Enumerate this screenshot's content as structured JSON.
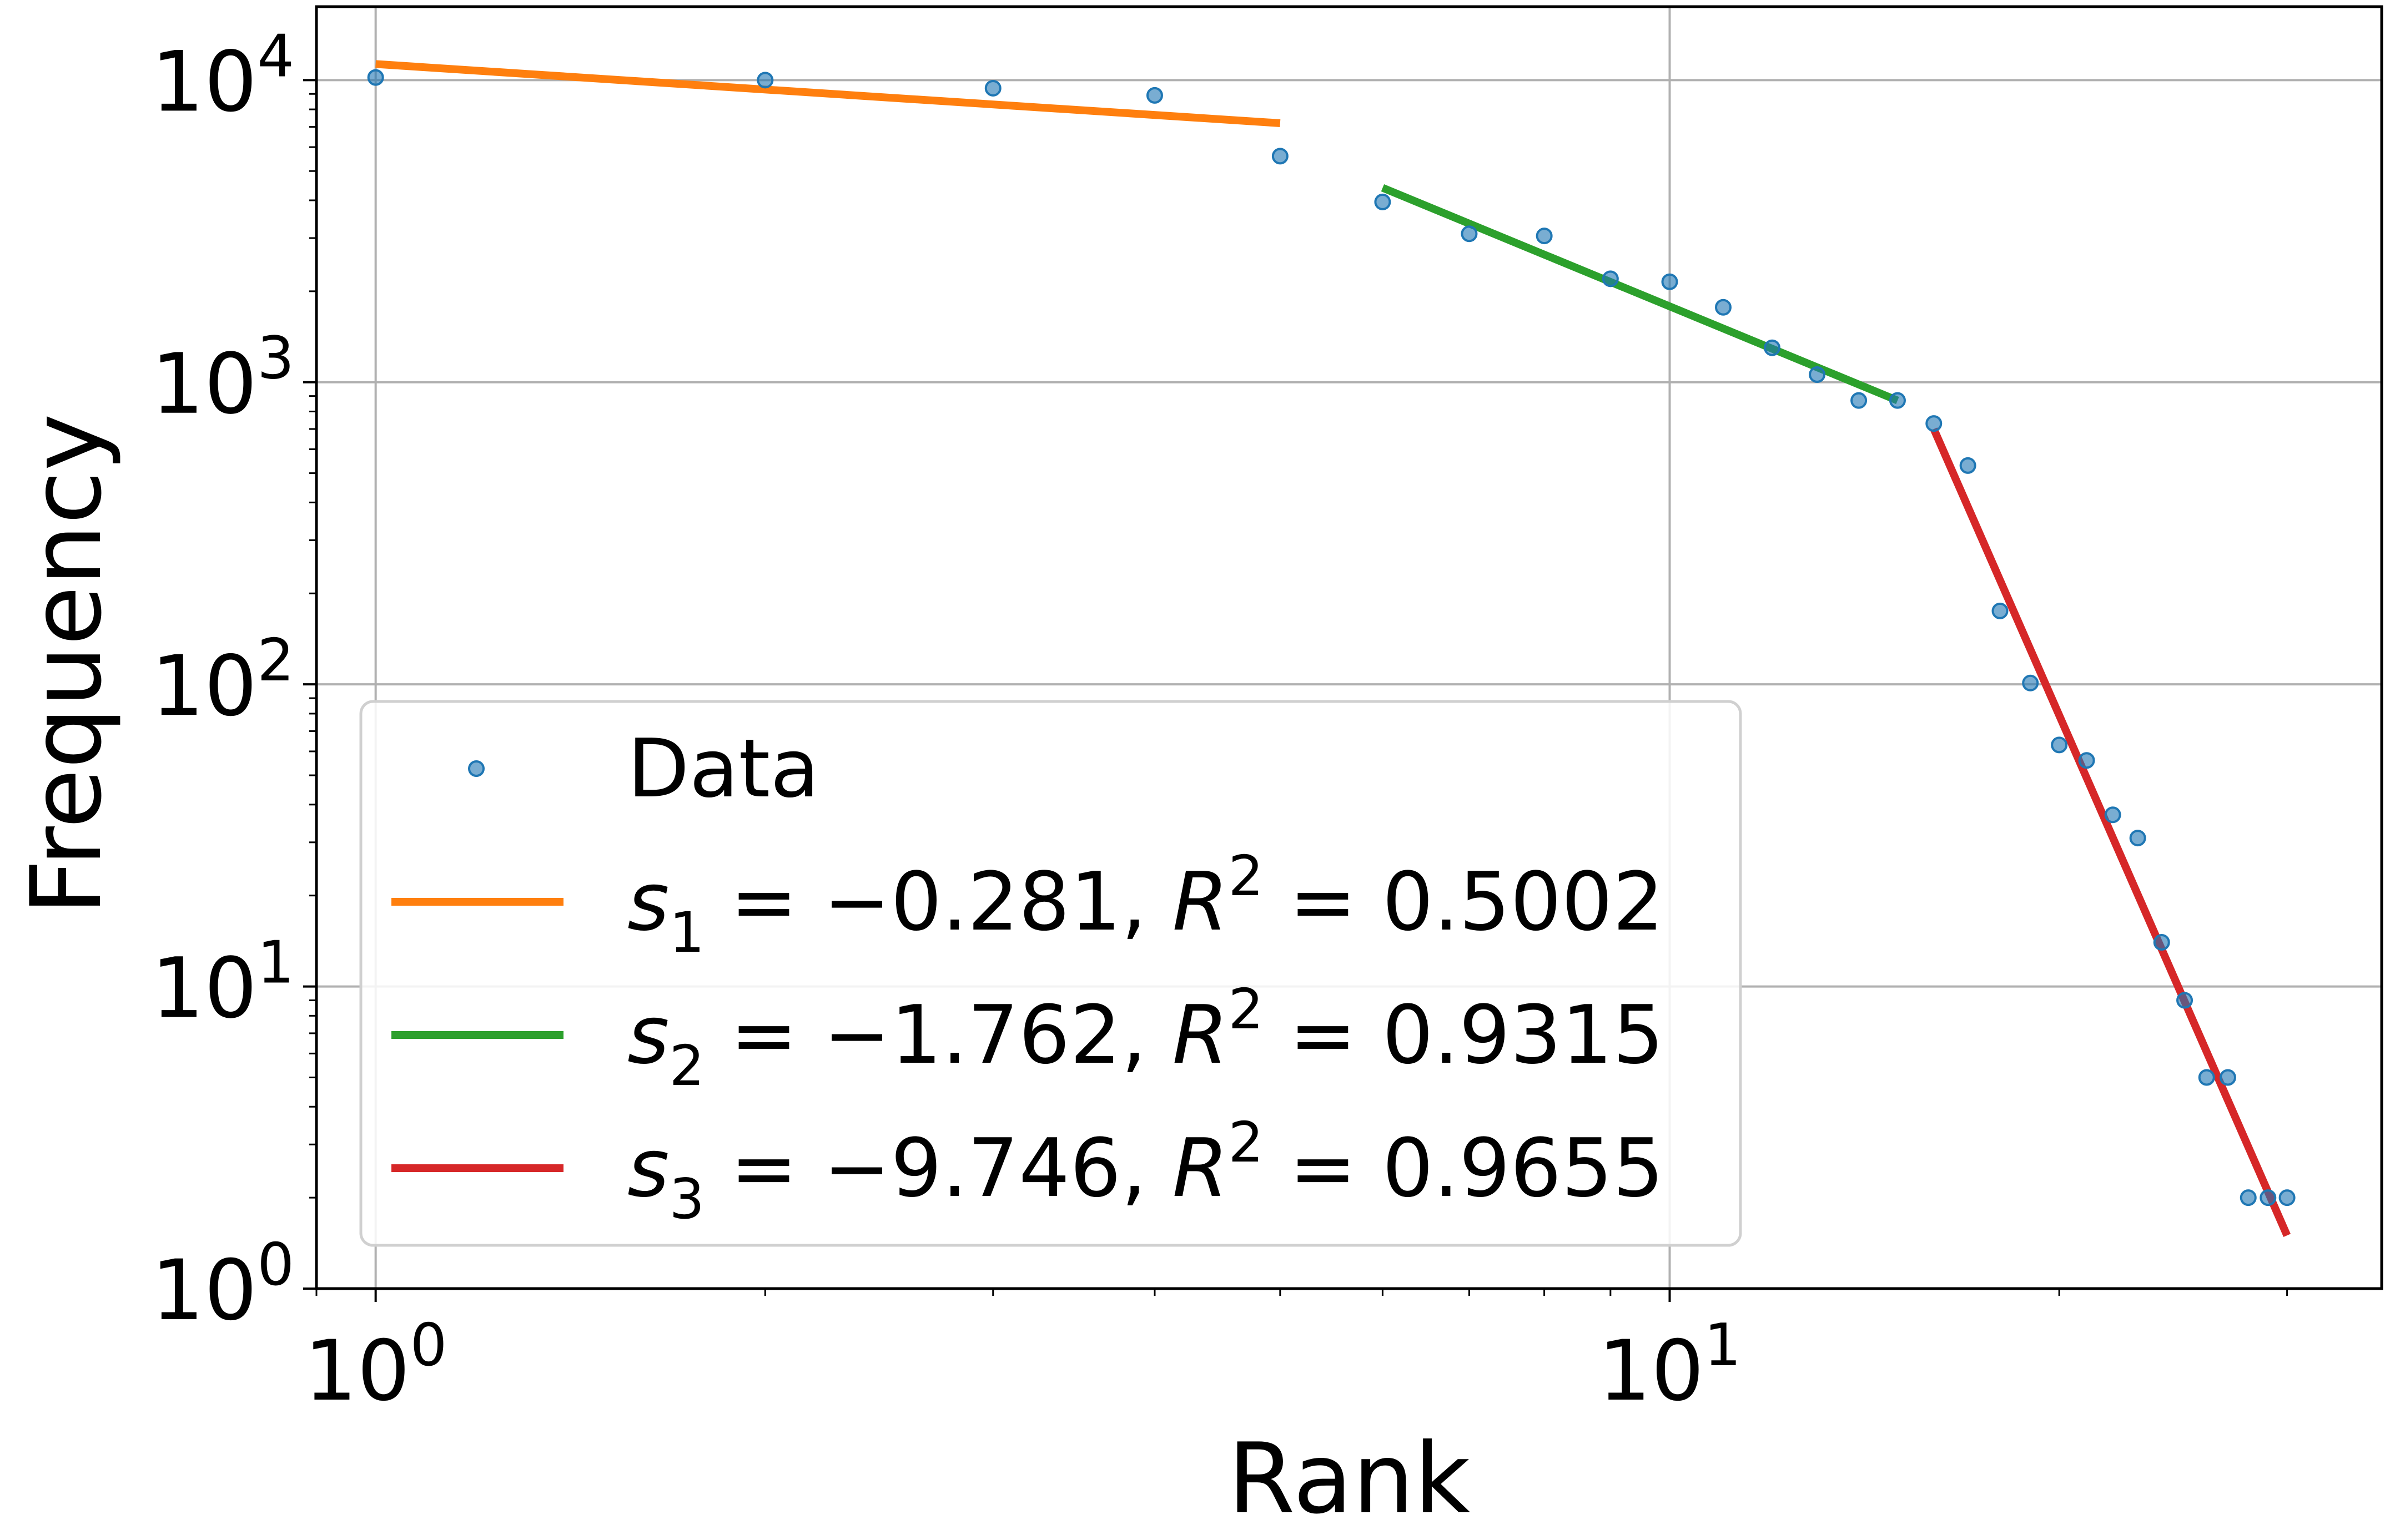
{
  "chart_data": {
    "type": "scatter",
    "title": "",
    "xlabel": "Rank",
    "ylabel": "Frequency",
    "xscale": "log",
    "yscale": "log",
    "xlim": [
      0.9,
      35.5
    ],
    "ylim": [
      1,
      17500
    ],
    "grid": true,
    "legend_position": "bottom-left",
    "x_ticks": [
      {
        "value": 1,
        "base": "10",
        "exp": "0"
      },
      {
        "value": 10,
        "base": "10",
        "exp": "1"
      }
    ],
    "y_ticks": [
      {
        "value": 1,
        "base": "10",
        "exp": "0"
      },
      {
        "value": 10,
        "base": "10",
        "exp": "1"
      },
      {
        "value": 100,
        "base": "10",
        "exp": "2"
      },
      {
        "value": 1000,
        "base": "10",
        "exp": "3"
      },
      {
        "value": 10000,
        "base": "10",
        "exp": "4"
      }
    ],
    "series": [
      {
        "name": "Data",
        "kind": "points",
        "color": "#1f77b4",
        "x": [
          1,
          2,
          3,
          4,
          5,
          6,
          7,
          8,
          9,
          10,
          11,
          12,
          13,
          14,
          15,
          16,
          17,
          18,
          19,
          20,
          21,
          22,
          23,
          24,
          25,
          26,
          27,
          28,
          29,
          30
        ],
        "y": [
          10200,
          10000,
          9400,
          8900,
          5600,
          3950,
          3100,
          3050,
          2200,
          2150,
          1770,
          1300,
          1060,
          870,
          870,
          730,
          530,
          175,
          101,
          63,
          56,
          37,
          31,
          14,
          9,
          5,
          5,
          2,
          2,
          2
        ]
      },
      {
        "name": "s1 fit",
        "kind": "line",
        "color": "#ff7f0e",
        "x": [
          1,
          5
        ],
        "y": [
          11300,
          7200
        ]
      },
      {
        "name": "s2 fit",
        "kind": "line",
        "color": "#2ca02c",
        "x": [
          6,
          15
        ],
        "y": [
          4400,
          870
        ]
      },
      {
        "name": "s3 fit",
        "kind": "line",
        "color": "#d62728",
        "x": [
          16,
          30
        ],
        "y": [
          700,
          1.5
        ]
      }
    ],
    "legend": [
      {
        "kind": "marker",
        "color": "#1f77b4",
        "text": "Data"
      },
      {
        "kind": "line",
        "color": "#ff7f0e",
        "sym": "s",
        "sub": "1",
        "slope": "−0.281,",
        "r2": "0.5002"
      },
      {
        "kind": "line",
        "color": "#2ca02c",
        "sym": "s",
        "sub": "2",
        "slope": "−1.762,",
        "r2": "0.9315"
      },
      {
        "kind": "line",
        "color": "#d62728",
        "sym": "s",
        "sub": "3",
        "slope": "−9.746,",
        "r2": "0.9655"
      }
    ]
  }
}
